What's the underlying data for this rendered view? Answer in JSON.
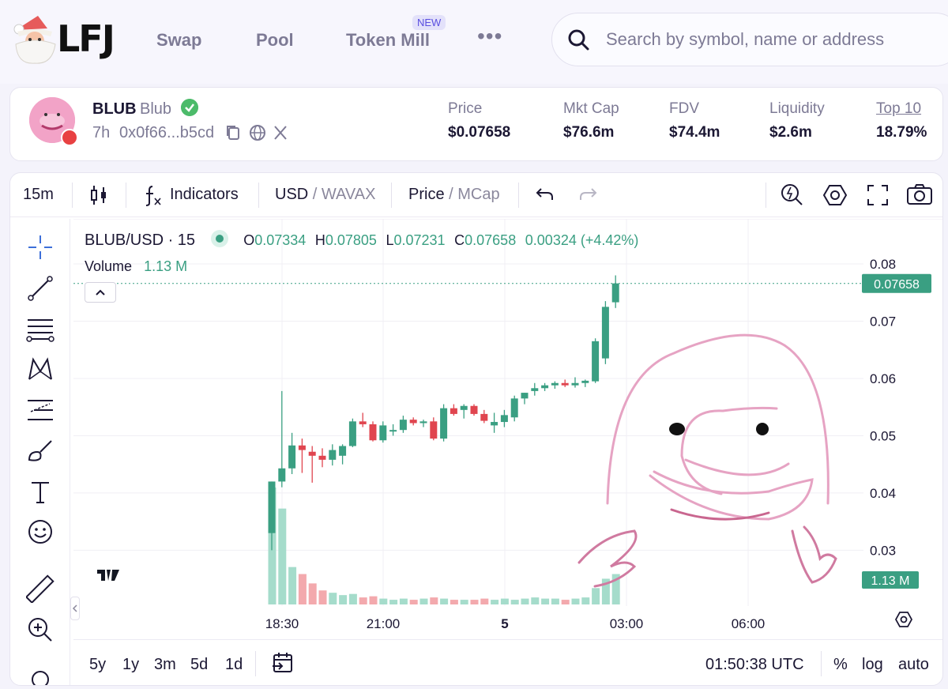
{
  "nav": {
    "logo": "LFJ",
    "links": [
      "Swap",
      "Pool",
      "Token Mill"
    ],
    "new_badge": "NEW",
    "more": "•••",
    "search_placeholder": "Search by symbol, name or address"
  },
  "token": {
    "symbol": "BLUB",
    "name": "Blub",
    "age": "7h",
    "address": "0x0f66...b5cd",
    "stats": [
      {
        "label": "Price",
        "value": "$0.07658"
      },
      {
        "label": "Mkt Cap",
        "value": "$76.6m"
      },
      {
        "label": "FDV",
        "value": "$74.4m"
      },
      {
        "label": "Liquidity",
        "value": "$2.6m"
      },
      {
        "label": "Top 10",
        "value": "18.79%"
      }
    ]
  },
  "toolbar": {
    "interval": "15m",
    "indicators": "Indicators",
    "currency_main": "USD",
    "currency_sep": " / ",
    "currency_alt": "WAVAX",
    "mode_main": "Price",
    "mode_sep": " / ",
    "mode_alt": "MCap"
  },
  "legend": {
    "pair": "BLUB/USD · 15",
    "o_label": "O",
    "o": "0.07334",
    "h_label": "H",
    "h": "0.07805",
    "l_label": "L",
    "l": "0.07231",
    "c_label": "C",
    "c": "0.07658",
    "change": "0.00324 (+4.42%)",
    "volume_label": "Volume",
    "volume": "1.13 M"
  },
  "bottom": {
    "ranges": [
      "5y",
      "1y",
      "3m",
      "5d",
      "1d"
    ],
    "time": "01:50:38 UTC",
    "pct": "%",
    "log": "log",
    "auto": "auto"
  },
  "colors": {
    "up": "#3a9f82",
    "down": "#e0454f",
    "accent": "#5a4ee0",
    "vol_up": "#a5dccb",
    "vol_down": "#f3a9ad"
  },
  "chart_data": {
    "type": "candlestick",
    "pair": "BLUB/USD",
    "interval": "15",
    "ylim": [
      0.025,
      0.083
    ],
    "yticks": [
      "0.08",
      "0.07",
      "0.06",
      "0.05",
      "0.04",
      "0.03"
    ],
    "xticks": [
      "18:30",
      "21:00",
      "5",
      "03:00",
      "06:00"
    ],
    "last_price": "0.07658",
    "last_volume": "1.13 M",
    "candles": [
      {
        "o": 0.033,
        "h": 0.042,
        "l": 0.03,
        "c": 0.042,
        "v": 100
      },
      {
        "o": 0.042,
        "h": 0.0578,
        "l": 0.041,
        "c": 0.0443,
        "v": 82
      },
      {
        "o": 0.0443,
        "h": 0.0505,
        "l": 0.0433,
        "c": 0.0483,
        "v": 32
      },
      {
        "o": 0.0483,
        "h": 0.0495,
        "l": 0.0435,
        "c": 0.0475,
        "v": 26
      },
      {
        "o": 0.0472,
        "h": 0.0482,
        "l": 0.0418,
        "c": 0.0465,
        "v": 18
      },
      {
        "o": 0.0465,
        "h": 0.0478,
        "l": 0.0445,
        "c": 0.0458,
        "v": 12
      },
      {
        "o": 0.0458,
        "h": 0.0485,
        "l": 0.0448,
        "c": 0.0475,
        "v": 10
      },
      {
        "o": 0.0465,
        "h": 0.0485,
        "l": 0.045,
        "c": 0.0482,
        "v": 8
      },
      {
        "o": 0.0482,
        "h": 0.053,
        "l": 0.048,
        "c": 0.0525,
        "v": 9
      },
      {
        "o": 0.0525,
        "h": 0.054,
        "l": 0.0515,
        "c": 0.052,
        "v": 6
      },
      {
        "o": 0.052,
        "h": 0.0525,
        "l": 0.049,
        "c": 0.0492,
        "v": 7
      },
      {
        "o": 0.0492,
        "h": 0.0525,
        "l": 0.0488,
        "c": 0.0518,
        "v": 5
      },
      {
        "o": 0.0508,
        "h": 0.052,
        "l": 0.05,
        "c": 0.051,
        "v": 4
      },
      {
        "o": 0.051,
        "h": 0.0535,
        "l": 0.0505,
        "c": 0.0528,
        "v": 5
      },
      {
        "o": 0.0528,
        "h": 0.0532,
        "l": 0.0518,
        "c": 0.0522,
        "v": 4
      },
      {
        "o": 0.0522,
        "h": 0.0528,
        "l": 0.0515,
        "c": 0.0525,
        "v": 5
      },
      {
        "o": 0.0525,
        "h": 0.0532,
        "l": 0.0492,
        "c": 0.0495,
        "v": 6
      },
      {
        "o": 0.0495,
        "h": 0.0555,
        "l": 0.049,
        "c": 0.0548,
        "v": 5
      },
      {
        "o": 0.0548,
        "h": 0.0555,
        "l": 0.0535,
        "c": 0.0538,
        "v": 4
      },
      {
        "o": 0.0545,
        "h": 0.0555,
        "l": 0.053,
        "c": 0.0552,
        "v": 4
      },
      {
        "o": 0.0552,
        "h": 0.0555,
        "l": 0.0535,
        "c": 0.0538,
        "v": 4
      },
      {
        "o": 0.0538,
        "h": 0.0545,
        "l": 0.0522,
        "c": 0.0526,
        "v": 5
      },
      {
        "o": 0.0518,
        "h": 0.054,
        "l": 0.0505,
        "c": 0.0524,
        "v": 4
      },
      {
        "o": 0.0524,
        "h": 0.0545,
        "l": 0.0515,
        "c": 0.0536,
        "v": 5
      },
      {
        "o": 0.0532,
        "h": 0.057,
        "l": 0.0525,
        "c": 0.0565,
        "v": 4
      },
      {
        "o": 0.0565,
        "h": 0.0575,
        "l": 0.0555,
        "c": 0.0575,
        "v": 5
      },
      {
        "o": 0.0578,
        "h": 0.0592,
        "l": 0.057,
        "c": 0.0583,
        "v": 6
      },
      {
        "o": 0.0583,
        "h": 0.0592,
        "l": 0.0578,
        "c": 0.0588,
        "v": 5
      },
      {
        "o": 0.0588,
        "h": 0.0595,
        "l": 0.0582,
        "c": 0.0592,
        "v": 5
      },
      {
        "o": 0.0592,
        "h": 0.0598,
        "l": 0.0585,
        "c": 0.0588,
        "v": 4
      },
      {
        "o": 0.0588,
        "h": 0.0602,
        "l": 0.0584,
        "c": 0.0592,
        "v": 5
      },
      {
        "o": 0.0592,
        "h": 0.0598,
        "l": 0.0585,
        "c": 0.0596,
        "v": 6
      },
      {
        "o": 0.0595,
        "h": 0.067,
        "l": 0.0592,
        "c": 0.0665,
        "v": 14
      },
      {
        "o": 0.0635,
        "h": 0.0735,
        "l": 0.0625,
        "c": 0.0725,
        "v": 22
      },
      {
        "o": 0.0733,
        "h": 0.078,
        "l": 0.0723,
        "c": 0.0766,
        "v": 26
      }
    ]
  }
}
